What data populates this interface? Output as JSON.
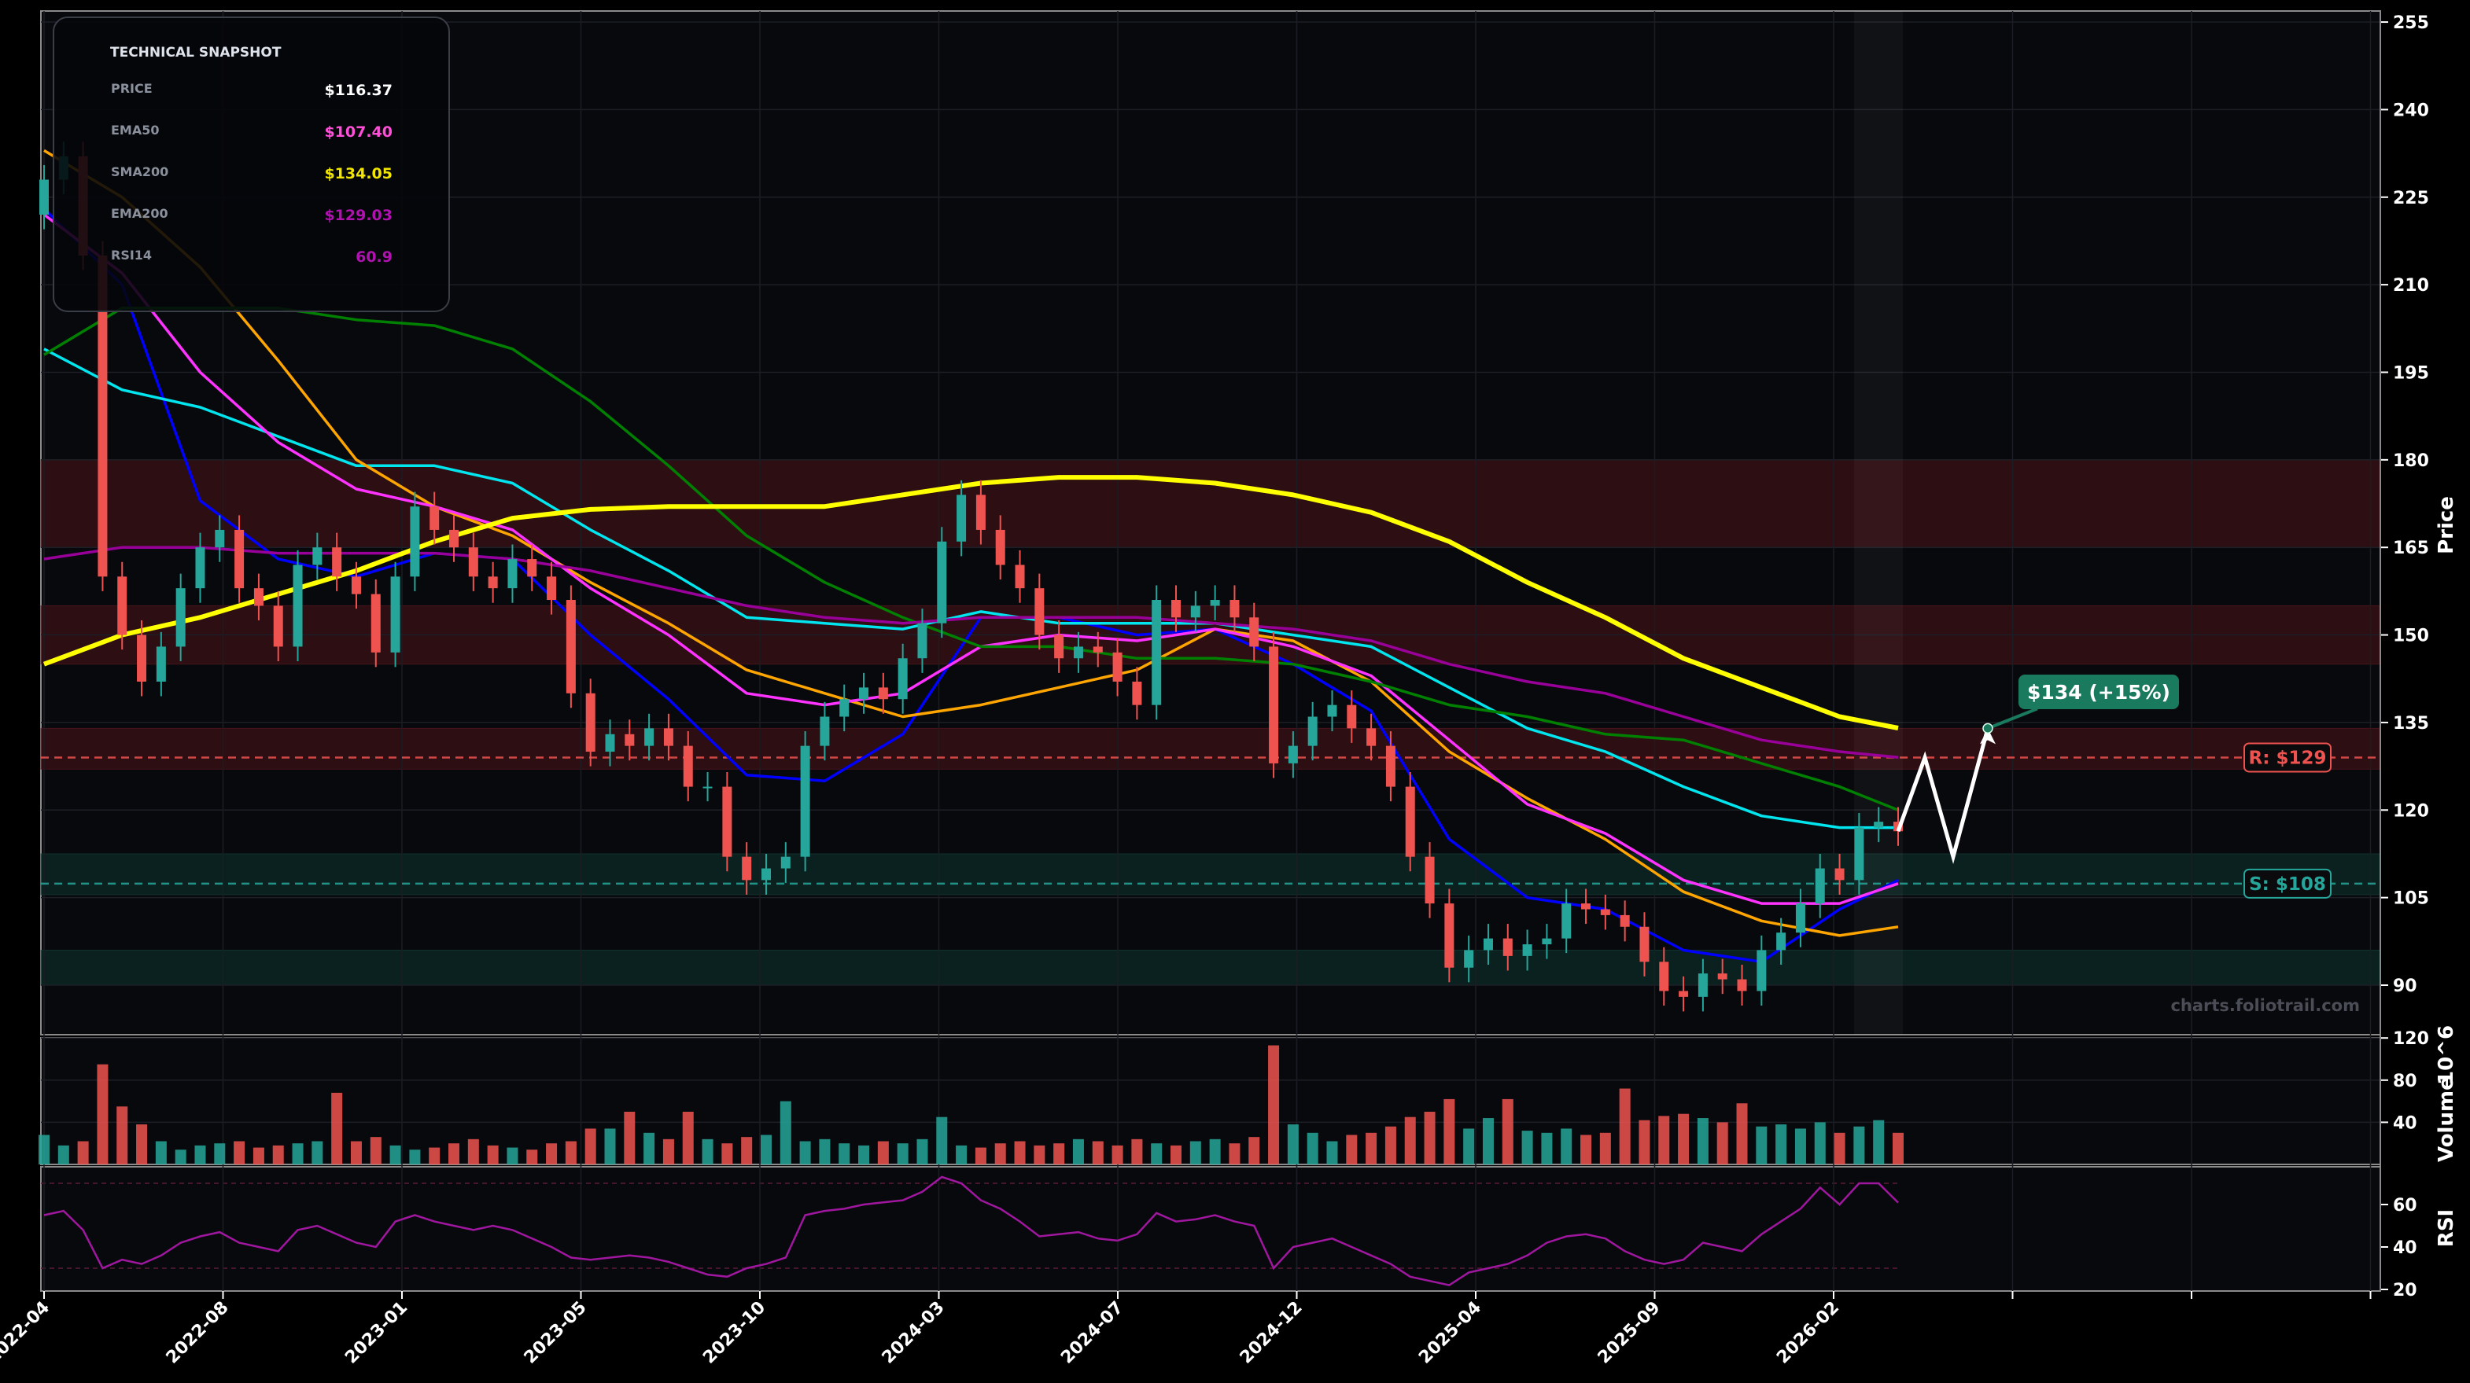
{
  "chart_data": {
    "type": "candlestick",
    "watermark": "charts.foliotrail.com",
    "ylabel": "Price",
    "volume_label": "Volume",
    "volume_unit": "10^6",
    "rsi_label": "RSI",
    "price_ticks": [
      90,
      105,
      120,
      135,
      150,
      165,
      180,
      195,
      210,
      225,
      240,
      255
    ],
    "price_range": [
      85,
      257
    ],
    "volume_ticks": [
      40,
      80,
      120
    ],
    "volume_range": [
      0,
      120
    ],
    "rsi_ticks": [
      20,
      40,
      60
    ],
    "rsi_range": [
      20,
      80
    ],
    "rsi_levels": [
      30,
      70
    ],
    "x_ticks": [
      "2022-04",
      "2022-08",
      "2023-01",
      "2023-05",
      "2023-10",
      "2024-03",
      "2024-07",
      "2024-12",
      "2025-04",
      "2025-09",
      "2026-02"
    ],
    "colors": {
      "up": "#26a69a",
      "down": "#ef5350",
      "bg": "#08090d",
      "resistance": "#ef5350",
      "support": "#26a69a",
      "target": "#1a7a5e",
      "rsi": "#a0179f"
    },
    "close": [
      228,
      232,
      215,
      160,
      150,
      142,
      148,
      158,
      165,
      168,
      158,
      155,
      148,
      162,
      165,
      160,
      157,
      147,
      160,
      172,
      168,
      165,
      160,
      158,
      163,
      160,
      156,
      140,
      130,
      133,
      131,
      134,
      131,
      124,
      124,
      112,
      108,
      110,
      112,
      131,
      136,
      139,
      141,
      139,
      146,
      152,
      166,
      174,
      168,
      162,
      158,
      150,
      146,
      148,
      147,
      142,
      138,
      156,
      153,
      155,
      156,
      153,
      148,
      128,
      131,
      136,
      138,
      134,
      131,
      124,
      112,
      104,
      93,
      96,
      98,
      95,
      97,
      98,
      104,
      103,
      102,
      100,
      94,
      89,
      88,
      92,
      91,
      89,
      96,
      99,
      104,
      110,
      108,
      117,
      118,
      116.37
    ],
    "volume": [
      28,
      18,
      22,
      95,
      55,
      38,
      22,
      14,
      18,
      20,
      22,
      16,
      18,
      20,
      22,
      68,
      22,
      26,
      18,
      14,
      16,
      20,
      24,
      18,
      16,
      14,
      20,
      22,
      34,
      34,
      50,
      30,
      24,
      50,
      24,
      20,
      26,
      28,
      60,
      22,
      24,
      20,
      18,
      22,
      20,
      24,
      45,
      18,
      16,
      20,
      22,
      18,
      20,
      24,
      22,
      18,
      24,
      20,
      18,
      22,
      24,
      20,
      26,
      113,
      38,
      30,
      22,
      28,
      30,
      36,
      45,
      50,
      62,
      34,
      44,
      62,
      32,
      30,
      34,
      28,
      30,
      72,
      42,
      46,
      48,
      44,
      40,
      58,
      36,
      38,
      34,
      40,
      30,
      36,
      42,
      30
    ],
    "rsi": [
      55,
      57,
      48,
      30,
      34,
      32,
      36,
      42,
      45,
      47,
      42,
      40,
      38,
      48,
      50,
      46,
      42,
      40,
      52,
      55,
      52,
      50,
      48,
      50,
      48,
      44,
      40,
      35,
      34,
      35,
      36,
      35,
      33,
      30,
      27,
      26,
      30,
      32,
      35,
      55,
      57,
      58,
      60,
      61,
      62,
      66,
      73,
      70,
      62,
      58,
      52,
      45,
      46,
      47,
      44,
      43,
      46,
      56,
      52,
      53,
      55,
      52,
      50,
      30,
      40,
      42,
      44,
      40,
      36,
      32,
      26,
      24,
      22,
      28,
      30,
      32,
      36,
      42,
      45,
      46,
      44,
      38,
      34,
      32,
      34,
      42,
      40,
      38,
      46,
      52,
      58,
      68,
      60,
      70,
      70,
      60.9
    ],
    "overlays": [
      {
        "color": "#0000ff",
        "values": [
          223,
          210,
          173,
          163,
          160,
          164,
          163,
          150,
          139,
          126,
          125,
          133,
          153,
          153,
          150,
          151,
          145,
          137,
          115,
          105,
          103,
          96,
          94,
          103,
          108
        ]
      },
      {
        "color": "#00e5ee",
        "values": [
          199,
          192,
          189,
          184,
          179,
          179,
          176,
          168,
          161,
          153,
          152,
          151,
          154,
          152,
          152,
          152,
          150,
          148,
          141,
          134,
          130,
          124,
          119,
          117,
          117
        ]
      },
      {
        "color": "#ffa500",
        "values": [
          233,
          225,
          213,
          197,
          180,
          172,
          167,
          159,
          152,
          144,
          140,
          136,
          138,
          141,
          144,
          151,
          149,
          142,
          130,
          122,
          115,
          106,
          101,
          98.5,
          100
        ]
      },
      {
        "name": "EMA50",
        "color": "#ff33ff",
        "values": [
          222,
          212,
          195,
          183,
          175,
          172,
          168,
          158,
          150,
          140,
          138,
          140,
          148,
          150,
          149,
          151,
          148,
          143,
          132,
          121,
          116,
          108,
          104,
          104,
          107.4
        ]
      },
      {
        "color": "#008000",
        "values": [
          198,
          206,
          206,
          206,
          204,
          203,
          199,
          190,
          179,
          167,
          159,
          153,
          148,
          148,
          146,
          146,
          145,
          142,
          138,
          136,
          133,
          132,
          128,
          124,
          120
        ]
      },
      {
        "name": "EMA200",
        "color": "#990099",
        "values": [
          163,
          165,
          165,
          164,
          164,
          164,
          163,
          161,
          158,
          155,
          153,
          152,
          153,
          153,
          153,
          152,
          151,
          149,
          145,
          142,
          140,
          136,
          132,
          130,
          129.03
        ]
      },
      {
        "name": "SMA200",
        "color": "#ffff00",
        "values": [
          145,
          150,
          153,
          157,
          161,
          166,
          170,
          171.5,
          172,
          172,
          172,
          174,
          176,
          177,
          177,
          176,
          174,
          171,
          166,
          159,
          153,
          146,
          141,
          136,
          134.05
        ]
      }
    ],
    "zones": [
      {
        "kind": "resistance",
        "from": 165,
        "to": 180
      },
      {
        "kind": "resistance",
        "from": 145,
        "to": 155
      },
      {
        "kind": "resistance",
        "from": 127,
        "to": 134
      },
      {
        "kind": "support",
        "from": 105.5,
        "to": 112.5
      },
      {
        "kind": "support",
        "from": 90,
        "to": 96
      }
    ],
    "resistance": {
      "value": 129,
      "label": "R: $129"
    },
    "support": {
      "value": 107.4,
      "label": "S: $108"
    },
    "projection": {
      "path": [
        116.37,
        129,
        112,
        134
      ],
      "label": "$134 (+15%)"
    }
  },
  "snapshot": {
    "title": "TECHNICAL SNAPSHOT",
    "rows": [
      {
        "label": "PRICE",
        "value": "$116.37",
        "color": "#ffffff"
      },
      {
        "label": "EMA50",
        "value": "$107.40",
        "color": "#ff4fd8"
      },
      {
        "label": "SMA200",
        "value": "$134.05",
        "color": "#f2e600"
      },
      {
        "label": "EMA200",
        "value": "$129.03",
        "color": "#b012b0"
      },
      {
        "label": "RSI14",
        "value": "60.9",
        "color": "#b012b0"
      }
    ]
  }
}
